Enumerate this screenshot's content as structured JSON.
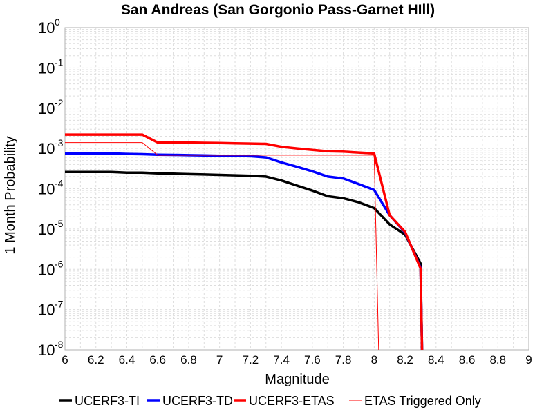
{
  "chart_data": {
    "type": "line",
    "title": "San Andreas (San Gorgonio Pass-Garnet HIll)",
    "xlabel": "Magnitude",
    "ylabel": "1 Month Probability",
    "xlim": [
      6,
      9
    ],
    "ylim": [
      1e-08,
      1
    ],
    "yscale": "log",
    "grid": true,
    "legend_position": "bottom",
    "xticks": [
      "6",
      "6.2",
      "6.4",
      "6.6",
      "6.8",
      "7",
      "7.2",
      "7.4",
      "7.6",
      "7.8",
      "8",
      "8.2",
      "8.4",
      "8.6",
      "8.8",
      "9"
    ],
    "yticks": [
      {
        "base": "10",
        "exp": "0",
        "value": 1
      },
      {
        "base": "10",
        "exp": "-1",
        "value": 0.1
      },
      {
        "base": "10",
        "exp": "-2",
        "value": 0.01
      },
      {
        "base": "10",
        "exp": "-3",
        "value": 0.001
      },
      {
        "base": "10",
        "exp": "-4",
        "value": 0.0001
      },
      {
        "base": "10",
        "exp": "-5",
        "value": 1e-05
      },
      {
        "base": "10",
        "exp": "-6",
        "value": 1e-06
      },
      {
        "base": "10",
        "exp": "-7",
        "value": 1e-07
      },
      {
        "base": "10",
        "exp": "-8",
        "value": 1e-08
      }
    ],
    "series": [
      {
        "name": "UCERF3-TI",
        "color": "#000000",
        "style": "thick",
        "x": [
          6.0,
          6.1,
          6.2,
          6.3,
          6.4,
          6.5,
          6.6,
          6.7,
          6.8,
          6.9,
          7.0,
          7.1,
          7.2,
          7.3,
          7.4,
          7.5,
          7.6,
          7.7,
          7.8,
          7.9,
          8.0,
          8.1,
          8.2,
          8.3,
          8.31
        ],
        "y": [
          0.00026,
          0.00026,
          0.00026,
          0.00026,
          0.00025,
          0.00025,
          0.00024,
          0.000235,
          0.00023,
          0.000225,
          0.00022,
          0.000215,
          0.00021,
          0.0002,
          0.00016,
          0.00012,
          9e-05,
          6.5e-05,
          5.8e-05,
          4.6e-05,
          3.3e-05,
          1.3e-05,
          7.2e-06,
          1.4e-06,
          7e-09
        ]
      },
      {
        "name": "UCERF3-TD",
        "color": "#0000ff",
        "style": "thick",
        "x": [
          6.0,
          6.1,
          6.2,
          6.3,
          6.4,
          6.5,
          6.6,
          6.7,
          6.8,
          6.9,
          7.0,
          7.1,
          7.2,
          7.3,
          7.4,
          7.5,
          7.6,
          7.7,
          7.8,
          7.9,
          8.0,
          8.1,
          8.2,
          8.3,
          8.31
        ],
        "y": [
          0.00075,
          0.00075,
          0.00075,
          0.00075,
          0.00073,
          0.00072,
          0.0007,
          0.00069,
          0.00068,
          0.00067,
          0.00066,
          0.00065,
          0.00064,
          0.0006,
          0.00045,
          0.00035,
          0.00027,
          0.0002,
          0.00018,
          0.00013,
          9.3e-05,
          2.2e-05,
          8.2e-06,
          1.1e-06,
          7e-09
        ]
      },
      {
        "name": "UCERF3-ETAS",
        "color": "#ff0000",
        "style": "thick",
        "x": [
          6.0,
          6.1,
          6.2,
          6.3,
          6.4,
          6.5,
          6.6,
          6.7,
          6.8,
          6.9,
          7.0,
          7.1,
          7.2,
          7.3,
          7.4,
          7.5,
          7.6,
          7.7,
          7.8,
          7.9,
          8.0,
          8.1,
          8.2,
          8.3,
          8.31
        ],
        "y": [
          0.0022,
          0.0022,
          0.0022,
          0.0022,
          0.0022,
          0.0022,
          0.0014,
          0.0014,
          0.0014,
          0.00138,
          0.00136,
          0.00134,
          0.00132,
          0.0013,
          0.0011,
          0.001,
          0.00092,
          0.00085,
          0.00083,
          0.00079,
          0.00075,
          2.2e-05,
          8.5e-06,
          1.05e-06,
          7e-09
        ]
      },
      {
        "name": "ETAS Triggered Only",
        "color": "#ff0000",
        "style": "thin",
        "x": [
          6.0,
          6.5,
          6.6,
          7.0,
          7.5,
          8.0,
          8.03,
          8.04
        ],
        "y": [
          0.0014,
          0.0014,
          0.00068,
          0.00068,
          0.00068,
          0.00068,
          7e-09,
          7e-09
        ]
      }
    ]
  }
}
